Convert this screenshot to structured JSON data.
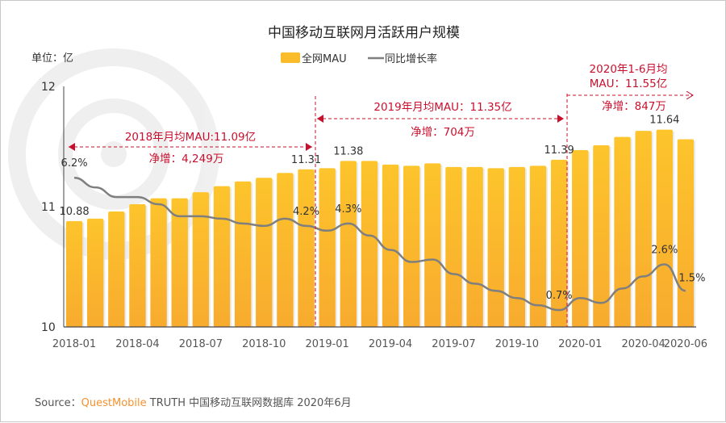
{
  "chart_data": {
    "type": "bar+line",
    "title": "中国移动互联网月活跃用户规模",
    "unit_label": "单位：亿",
    "legend": [
      {
        "name": "全网MAU",
        "type": "bar",
        "color": "#fbbc2c"
      },
      {
        "name": "同比增长率",
        "type": "line",
        "color": "#7f7f7f"
      }
    ],
    "legend_placement": "top-center",
    "categories": [
      "2018-01",
      "2018-02",
      "2018-03",
      "2018-04",
      "2018-05",
      "2018-06",
      "2018-07",
      "2018-08",
      "2018-09",
      "2018-10",
      "2018-11",
      "2018-12",
      "2019-01",
      "2019-02",
      "2019-03",
      "2019-04",
      "2019-05",
      "2019-06",
      "2019-07",
      "2019-08",
      "2019-09",
      "2019-10",
      "2019-11",
      "2019-12",
      "2020-01",
      "2020-02",
      "2020-03",
      "2020-04",
      "2020-05",
      "2020-06"
    ],
    "x_tick_labels": [
      "2018-01",
      "2018-04",
      "2018-07",
      "2018-10",
      "2019-01",
      "2019-04",
      "2019-07",
      "2019-10",
      "2020-01",
      "2020-04",
      "2020-06"
    ],
    "y_tick_labels": [
      "10",
      "11",
      "12"
    ],
    "ylim": [
      10,
      12
    ],
    "y2lim": [
      0,
      10
    ],
    "grid": false,
    "series": [
      {
        "name": "全网MAU",
        "axis": "left",
        "values": [
          10.88,
          10.9,
          10.96,
          11.02,
          11.07,
          11.07,
          11.12,
          11.17,
          11.21,
          11.24,
          11.28,
          11.31,
          11.32,
          11.38,
          11.38,
          11.35,
          11.34,
          11.36,
          11.33,
          11.33,
          11.32,
          11.33,
          11.34,
          11.39,
          11.47,
          11.51,
          11.58,
          11.63,
          11.64,
          11.56
        ]
      },
      {
        "name": "同比增长率",
        "axis": "right",
        "unit": "%",
        "values": [
          6.2,
          5.8,
          5.4,
          5.4,
          5.1,
          4.6,
          4.6,
          4.5,
          4.3,
          4.2,
          4.5,
          4.2,
          4.0,
          4.3,
          3.8,
          3.2,
          2.7,
          2.8,
          2.2,
          1.8,
          1.5,
          1.2,
          0.9,
          0.7,
          1.2,
          1.0,
          1.6,
          2.1,
          2.6,
          1.5
        ]
      }
    ],
    "bar_labels": [
      {
        "category": "2018-01",
        "text": "10.88"
      },
      {
        "category": "2018-12",
        "text": "11.31"
      },
      {
        "category": "2019-02",
        "text": "11.38"
      },
      {
        "category": "2019-12",
        "text": "11.39"
      },
      {
        "category": "2020-05",
        "text": "11.64"
      }
    ],
    "line_labels": [
      {
        "category": "2018-01",
        "text": "6.2%"
      },
      {
        "category": "2018-12",
        "text": "4.2%"
      },
      {
        "category": "2019-02",
        "text": "4.3%"
      },
      {
        "category": "2019-12",
        "text": "0.7%"
      },
      {
        "category": "2020-05",
        "text": "2.6%"
      },
      {
        "category": "2020-06",
        "text": "1.5%"
      }
    ],
    "annotations": {
      "y2018": {
        "avg": "2018年月均MAU:11.09亿",
        "net": "净增：4,249万"
      },
      "y2019": {
        "avg": "2019年月均MAU：11.35亿",
        "net": "净增：704万"
      },
      "y2020": {
        "avg_line1": "2020年1-6月均",
        "avg_line2": "MAU：11.55亿",
        "net": "净增：847万"
      },
      "color": "#c8102e"
    }
  },
  "source": {
    "prefix": "Source：",
    "brand": "QuestMobile",
    "rest": " TRUTH 中国移动互联网数据库 2020年6月",
    "brand_color": "#f5922f"
  }
}
